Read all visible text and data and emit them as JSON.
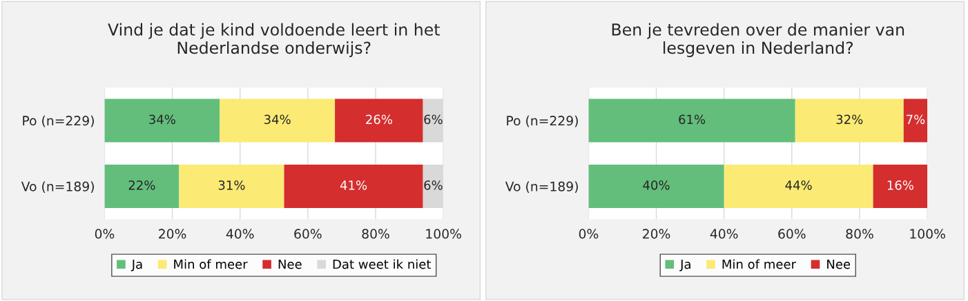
{
  "chart_data": [
    {
      "type": "bar",
      "orientation": "horizontal",
      "stacked": true,
      "title": "Vind je dat je kind voldoende leert in het\nNederlandse onderwijs?",
      "categories": [
        "Po (n=229)",
        "Vo (n=189)"
      ],
      "xlim": [
        0,
        100
      ],
      "xticks": [
        {
          "value": 0,
          "label": "0%"
        },
        {
          "value": 20,
          "label": "20%"
        },
        {
          "value": 40,
          "label": "40%"
        },
        {
          "value": 60,
          "label": "60%"
        },
        {
          "value": 80,
          "label": "80%"
        },
        {
          "value": 100,
          "label": "100%"
        }
      ],
      "grid": "x",
      "legend": "bottom",
      "series": [
        {
          "name": "Ja",
          "color": "#63be7b",
          "values": [
            34,
            22
          ],
          "value_labels": [
            "34%",
            "22%"
          ]
        },
        {
          "name": "Min of meer",
          "color": "#fbea74",
          "values": [
            34,
            31
          ],
          "value_labels": [
            "34%",
            "31%"
          ]
        },
        {
          "name": "Nee",
          "color": "#d42e2e",
          "values": [
            26,
            41
          ],
          "value_labels": [
            "26%",
            "41%"
          ]
        },
        {
          "name": "Dat weet ik niet",
          "color": "#d9d9d9",
          "values": [
            6,
            6
          ],
          "value_labels": [
            "6%",
            "6%"
          ]
        }
      ]
    },
    {
      "type": "bar",
      "orientation": "horizontal",
      "stacked": true,
      "title": "Ben je tevreden over de manier van\nlesgeven in Nederland?",
      "categories": [
        "Po (n=229)",
        "Vo (n=189)"
      ],
      "xlim": [
        0,
        100
      ],
      "xticks": [
        {
          "value": 0,
          "label": "0%"
        },
        {
          "value": 20,
          "label": "20%"
        },
        {
          "value": 40,
          "label": "40%"
        },
        {
          "value": 60,
          "label": "60%"
        },
        {
          "value": 80,
          "label": "80%"
        },
        {
          "value": 100,
          "label": "100%"
        }
      ],
      "grid": "x",
      "legend": "bottom",
      "series": [
        {
          "name": "Ja",
          "color": "#63be7b",
          "values": [
            61,
            40
          ],
          "value_labels": [
            "61%",
            "40%"
          ]
        },
        {
          "name": "Min of meer",
          "color": "#fbea74",
          "values": [
            32,
            44
          ],
          "value_labels": [
            "32%",
            "44%"
          ]
        },
        {
          "name": "Nee",
          "color": "#d42e2e",
          "values": [
            7,
            16
          ],
          "value_labels": [
            "7%",
            "16%"
          ]
        }
      ]
    }
  ]
}
